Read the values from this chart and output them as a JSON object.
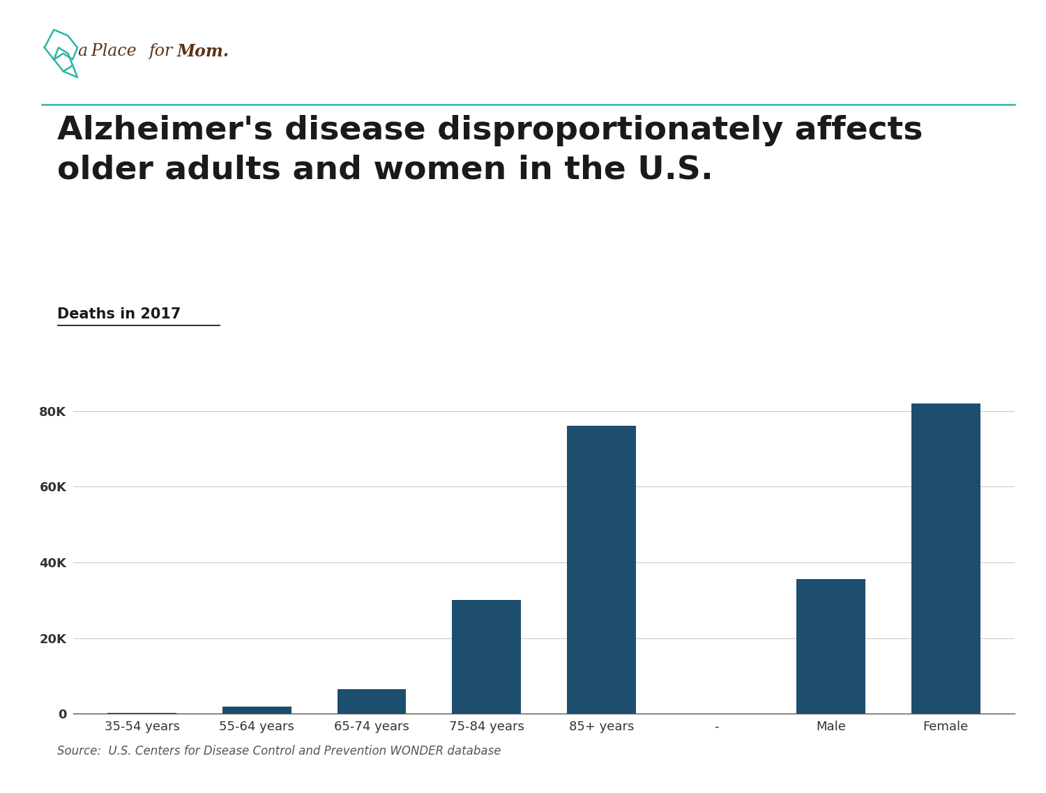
{
  "title_line1": "Alzheimer's disease disproportionately affects",
  "title_line2": "older adults and women in the U.S.",
  "subtitle": "Deaths in 2017",
  "categories": [
    "35-54 years",
    "55-64 years",
    "65-74 years",
    "75-84 years",
    "85+ years",
    "-",
    "Male",
    "Female"
  ],
  "values": [
    300,
    1800,
    6500,
    30000,
    76000,
    0,
    35500,
    82000
  ],
  "bar_color": "#1d4e6e",
  "background_color": "#ffffff",
  "yticks": [
    0,
    20000,
    40000,
    60000,
    80000
  ],
  "ytick_labels": [
    "0",
    "20K",
    "40K",
    "60K",
    "80K"
  ],
  "ylim": [
    0,
    88000
  ],
  "source_text": "Source:  U.S. Centers for Disease Control and Prevention WONDER database",
  "brand_color": "#5c3317",
  "teal_color": "#2ab5a5",
  "separator_index": 5,
  "title_fontsize": 34,
  "subtitle_fontsize": 15,
  "tick_fontsize": 13,
  "source_fontsize": 12
}
